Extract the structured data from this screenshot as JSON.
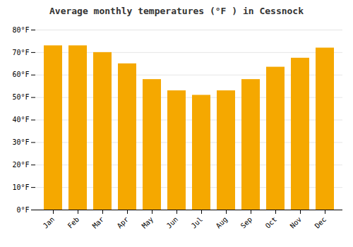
{
  "chart_data": {
    "type": "bar",
    "title": "Average monthly temperatures (°F ) in Cessnock",
    "categories": [
      "Jan",
      "Feb",
      "Mar",
      "Apr",
      "May",
      "Jun",
      "Jul",
      "Aug",
      "Sep",
      "Oct",
      "Nov",
      "Dec"
    ],
    "values": [
      73,
      73,
      70,
      65,
      58,
      53,
      51,
      53,
      58,
      63.5,
      67.5,
      72
    ],
    "color": "#F5A800",
    "ylim": [
      0,
      80
    ],
    "yticks": [
      {
        "value": 0,
        "label": "0°F"
      },
      {
        "value": 10,
        "label": "10°F"
      },
      {
        "value": 20,
        "label": "20°F"
      },
      {
        "value": 30,
        "label": "30°F"
      },
      {
        "value": 40,
        "label": "40°F"
      },
      {
        "value": 50,
        "label": "50°F"
      },
      {
        "value": 60,
        "label": "60°F"
      },
      {
        "value": 70,
        "label": "70°F"
      },
      {
        "value": 80,
        "label": "80°F"
      }
    ],
    "grid": true
  }
}
